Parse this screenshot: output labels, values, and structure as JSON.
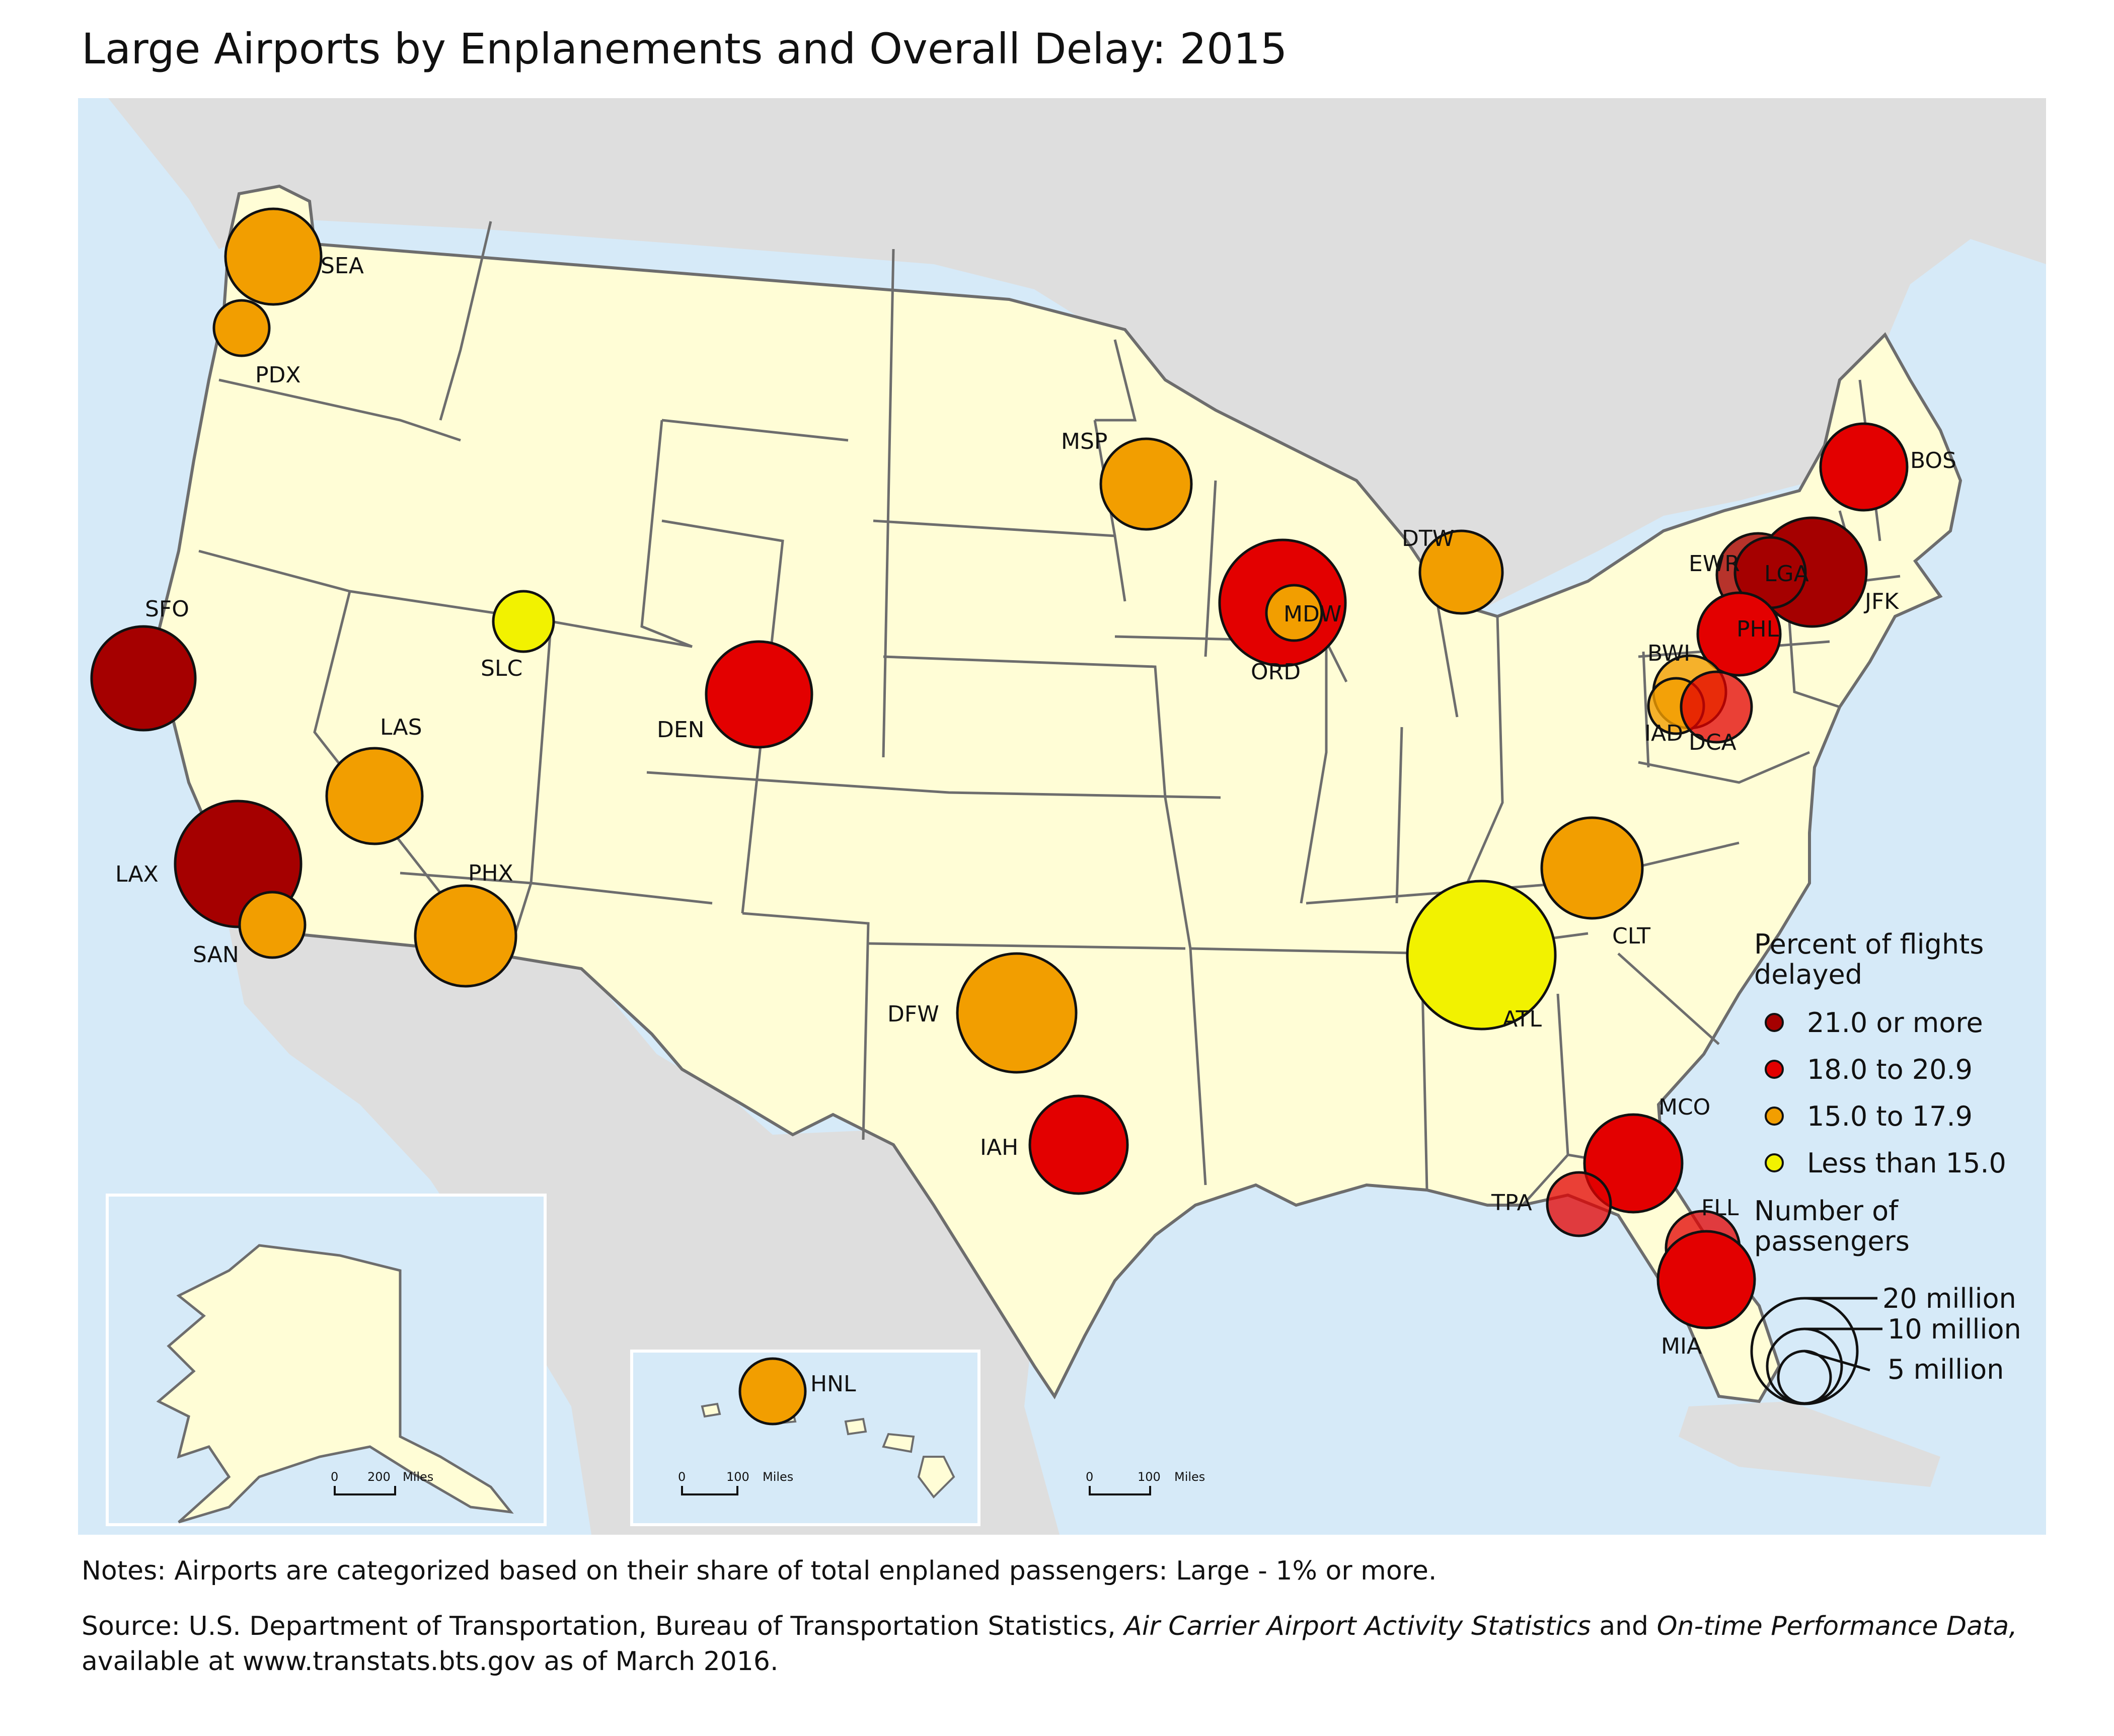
{
  "title": "Large Airports by Enplanements and Overall Delay: 2015",
  "colors": {
    "ocean": "#d6eaf8",
    "foreign_land": "#dedede",
    "us_land": "#fffdd6",
    "border": "#6d6d6d",
    "delay_21_plus": "#a50000",
    "delay_18_20": "#e30000",
    "delay_15_17": "#f29e00",
    "delay_lt_15": "#f2f200"
  },
  "airports": [
    {
      "code": "SEA",
      "cls": "c15"
    },
    {
      "code": "PDX",
      "cls": "c15"
    },
    {
      "code": "SFO",
      "cls": "c21"
    },
    {
      "code": "LAX",
      "cls": "c21"
    },
    {
      "code": "SAN",
      "cls": "c15"
    },
    {
      "code": "LAS",
      "cls": "c15"
    },
    {
      "code": "PHX",
      "cls": "c15"
    },
    {
      "code": "SLC",
      "cls": "c0"
    },
    {
      "code": "DEN",
      "cls": "c18"
    },
    {
      "code": "MSP",
      "cls": "c15"
    },
    {
      "code": "DFW",
      "cls": "c15"
    },
    {
      "code": "IAH",
      "cls": "c18"
    },
    {
      "code": "ORD",
      "cls": "c18"
    },
    {
      "code": "MDW",
      "cls": "c15"
    },
    {
      "code": "DTW",
      "cls": "c15"
    },
    {
      "code": "ATL",
      "cls": "c0"
    },
    {
      "code": "CLT",
      "cls": "c15"
    },
    {
      "code": "BOS",
      "cls": "c18"
    },
    {
      "code": "EWR",
      "cls": "c21t"
    },
    {
      "code": "JFK",
      "cls": "c21"
    },
    {
      "code": "LGA",
      "cls": "c21"
    },
    {
      "code": "PHL",
      "cls": "c18"
    },
    {
      "code": "BWI",
      "cls": "c15t"
    },
    {
      "code": "IAD",
      "cls": "c15t"
    },
    {
      "code": "DCA",
      "cls": "c18t"
    },
    {
      "code": "MCO",
      "cls": "c18"
    },
    {
      "code": "TPA",
      "cls": "c18t"
    },
    {
      "code": "FLL",
      "cls": "c18t"
    },
    {
      "code": "MIA",
      "cls": "c18"
    },
    {
      "code": "HNL",
      "cls": "c15"
    }
  ],
  "legend": {
    "delay_title_1": "Percent of flights",
    "delay_title_2": "delayed",
    "classes": [
      "21.0 or more",
      "18.0 to 20.9",
      "15.0 to 17.9",
      "Less than 15.0"
    ],
    "size_title_1": "Number of",
    "size_title_2": "passengers",
    "sizes": [
      "20 million",
      "10 million",
      "5 million"
    ]
  },
  "scale_bars": {
    "alaska": {
      "zero": "0",
      "distance": "200",
      "unit": "Miles"
    },
    "hawaii": {
      "zero": "0",
      "distance": "100",
      "unit": "Miles"
    },
    "mainland": {
      "zero": "0",
      "distance": "100",
      "unit": "Miles"
    }
  },
  "notes": {
    "line": "Notes: Airports are categorized based on their share of total enplaned passengers: Large - 1% or more.",
    "source_a": "Source: U.S. Department of Transportation, Bureau of Transportation Statistics, ",
    "source_b": "Air Carrier Airport Activity Statistics",
    "source_c": " and ",
    "source_d": "On-time Performance Data,",
    "source_e": "available at www.transtats.bts.gov as of March 2016."
  }
}
